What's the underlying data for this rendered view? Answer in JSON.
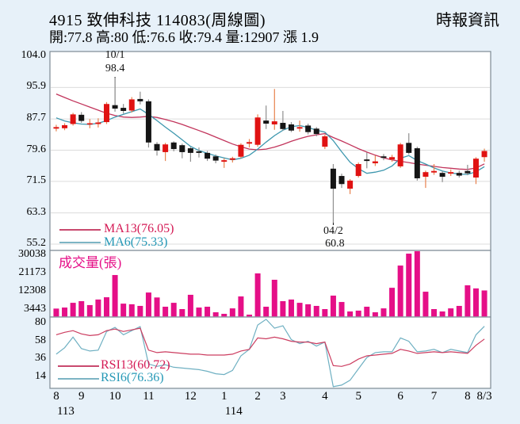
{
  "header": {
    "title": "4915  致伸科技 114083(周線圖)",
    "source": "時報資訊",
    "quote": "開:77.8 高:80 低:76.6 收:79.4 量:12907 漲 1.9"
  },
  "legends": {
    "ma13": "MA13(76.05)",
    "ma6": "MA6(75.33)",
    "volume_title": "成交量(張)",
    "rsi13": "RSI13(60.72)",
    "rsi6": "RSI6(76.36)"
  },
  "colors": {
    "background": "#e7f1f9",
    "plot_background": "#ffffff",
    "plot_border": "#7d8a94",
    "gridline": "#dcdcdc",
    "up_candle": "#e01212",
    "up_wick": "#e8824e",
    "down_candle": "#151515",
    "down_wick": "#8f8f8f",
    "ma13_line": "#c2355c",
    "ma6_line": "#3d97ae",
    "volume_bar": "#e50f87",
    "rsi13_line": "#cc3d60",
    "rsi6_line": "#6fb0c2",
    "annotation": "#111111"
  },
  "chart_data": {
    "type": "candlestick",
    "panes": [
      "price+ma",
      "volume",
      "rsi"
    ],
    "x_unit": "week",
    "price_ylim": [
      55.2,
      104.0
    ],
    "price_ticks": [
      104.0,
      95.9,
      87.7,
      79.6,
      71.5,
      63.3,
      55.2
    ],
    "volume_ticks": [
      30038,
      21173,
      12308,
      3443
    ],
    "rsi_ticks": [
      80,
      58,
      36,
      14
    ],
    "x_ticks": [
      {
        "label": "8",
        "i": 0
      },
      {
        "label": "9",
        "i": 3
      },
      {
        "label": "10",
        "i": 7
      },
      {
        "label": "11",
        "i": 11
      },
      {
        "label": "12",
        "i": 16
      },
      {
        "label": "1",
        "i": 20
      },
      {
        "label": "2",
        "i": 24
      },
      {
        "label": "3",
        "i": 27
      },
      {
        "label": "4",
        "i": 32
      },
      {
        "label": "5",
        "i": 36
      },
      {
        "label": "6",
        "i": 41
      },
      {
        "label": "7",
        "i": 45
      },
      {
        "label": "8",
        "i": 49
      },
      {
        "label": "8/3",
        "i": 51
      }
    ],
    "year_ticks": [
      {
        "label": "113",
        "i": 0
      },
      {
        "label": "114",
        "i": 20
      }
    ],
    "high_annotation": {
      "label": "10/1",
      "value_label": "98.4",
      "value": 98.4,
      "index": 7
    },
    "low_annotation": {
      "label": "04/2",
      "value_label": "60.8",
      "value": 60.8,
      "index": 33
    },
    "candles_ohlc": [
      [
        85.2,
        86.2,
        84.5,
        85.6
      ],
      [
        85.3,
        86.6,
        84.8,
        86.1
      ],
      [
        86.4,
        89.3,
        86.0,
        88.9
      ],
      [
        88.8,
        89.5,
        86.7,
        87.2
      ],
      [
        86.3,
        87.7,
        85.3,
        86.6
      ],
      [
        86.4,
        87.9,
        85.5,
        86.8
      ],
      [
        86.9,
        92.1,
        86.4,
        91.6
      ],
      [
        91.3,
        98.4,
        89.6,
        90.4
      ],
      [
        90.6,
        91.6,
        89.1,
        89.8
      ],
      [
        89.9,
        93.4,
        89.4,
        92.8
      ],
      [
        92.9,
        94.8,
        91.5,
        92.3
      ],
      [
        92.3,
        92.8,
        80.3,
        81.6
      ],
      [
        81.2,
        81.7,
        78.2,
        79.5
      ],
      [
        79.1,
        81.5,
        76.8,
        81.1
      ],
      [
        81.6,
        81.9,
        79.3,
        79.9
      ],
      [
        80.9,
        81.3,
        77.5,
        79.1
      ],
      [
        80.1,
        80.4,
        76.6,
        78.9
      ],
      [
        79.3,
        80.3,
        77.7,
        78.9
      ],
      [
        78.9,
        79.4,
        76.8,
        77.4
      ],
      [
        78.0,
        78.5,
        76.2,
        76.9
      ],
      [
        76.6,
        77.5,
        75.0,
        77.0
      ],
      [
        77.1,
        77.9,
        76.4,
        77.5
      ],
      [
        77.9,
        81.4,
        77.5,
        81.0
      ],
      [
        81.3,
        82.5,
        80.3,
        81.7
      ],
      [
        81.0,
        88.9,
        80.5,
        88.1
      ],
      [
        87.3,
        91.2,
        85.1,
        86.5
      ],
      [
        86.3,
        95.5,
        84.9,
        87.1
      ],
      [
        86.7,
        89.8,
        84.7,
        85.1
      ],
      [
        86.3,
        86.9,
        84.3,
        84.7
      ],
      [
        85.2,
        87.3,
        84.4,
        85.6
      ],
      [
        86.0,
        86.5,
        83.7,
        84.3
      ],
      [
        85.2,
        85.6,
        83.2,
        83.8
      ],
      [
        80.5,
        83.6,
        79.9,
        83.2
      ],
      [
        74.8,
        76.0,
        60.8,
        69.6
      ],
      [
        72.9,
        73.5,
        69.8,
        70.8
      ],
      [
        69.6,
        72.1,
        68.2,
        71.7
      ],
      [
        72.9,
        76.4,
        72.5,
        76.0
      ],
      [
        77.2,
        79.0,
        74.9,
        76.8
      ],
      [
        76.2,
        78.2,
        75.5,
        76.7
      ],
      [
        78.0,
        78.6,
        77.0,
        77.6
      ],
      [
        77.2,
        78.4,
        76.6,
        77.8
      ],
      [
        75.4,
        81.5,
        75.0,
        81.1
      ],
      [
        81.5,
        84.0,
        78.5,
        78.9
      ],
      [
        80.1,
        80.5,
        71.7,
        72.3
      ],
      [
        72.7,
        74.3,
        69.8,
        73.9
      ],
      [
        73.8,
        76.0,
        73.2,
        74.2
      ],
      [
        73.7,
        74.2,
        71.3,
        72.7
      ],
      [
        73.5,
        74.6,
        72.9,
        73.9
      ],
      [
        73.7,
        74.3,
        72.5,
        73.0
      ],
      [
        74.2,
        75.8,
        73.1,
        73.6
      ],
      [
        72.5,
        77.8,
        70.8,
        77.4
      ],
      [
        77.8,
        80.0,
        76.6,
        79.4
      ]
    ],
    "ma13": [
      94.2,
      93.3,
      92.4,
      91.6,
      90.8,
      90.0,
      89.2,
      88.6,
      88.2,
      88.1,
      88.2,
      88.4,
      88.1,
      87.6,
      87.0,
      86.3,
      85.5,
      84.7,
      83.9,
      83.0,
      82.1,
      81.2,
      80.5,
      79.9,
      79.7,
      79.9,
      80.4,
      81.1,
      81.9,
      82.6,
      83.2,
      83.6,
      83.9,
      82.9,
      82.0,
      81.0,
      80.0,
      79.1,
      78.3,
      77.6,
      77.1,
      76.7,
      76.4,
      76.0,
      75.7,
      75.4,
      75.1,
      74.9,
      74.7,
      74.6,
      75.0,
      76.05
    ],
    "ma6": [
      88.0,
      87.2,
      86.7,
      86.4,
      86.3,
      86.6,
      87.3,
      88.2,
      88.9,
      89.6,
      90.3,
      88.9,
      87.3,
      85.6,
      84.0,
      82.3,
      80.6,
      79.5,
      78.8,
      78.1,
      77.6,
      77.1,
      77.5,
      78.3,
      79.9,
      81.7,
      83.4,
      84.8,
      85.7,
      86.0,
      85.5,
      84.8,
      84.3,
      82.1,
      79.2,
      76.5,
      74.8,
      73.6,
      73.9,
      74.4,
      75.5,
      77.5,
      78.2,
      76.9,
      76.0,
      75.0,
      74.2,
      73.7,
      73.4,
      73.3,
      74.0,
      75.33
    ],
    "volume": [
      4100,
      4600,
      6900,
      7700,
      5800,
      8500,
      9600,
      20400,
      6500,
      6200,
      5400,
      11900,
      9500,
      5000,
      6900,
      3850,
      10800,
      4600,
      5000,
      2300,
      1550,
      4200,
      10000,
      1150,
      21200,
      5000,
      18100,
      7700,
      8500,
      6900,
      6200,
      5400,
      3850,
      10400,
      7300,
      2700,
      3100,
      5000,
      2300,
      4200,
      14200,
      25000,
      30800,
      32700,
      12300,
      3850,
      2700,
      4200,
      5400,
      15400,
      13900,
      12907
    ],
    "rsi13": [
      66,
      69,
      71,
      67,
      65,
      66,
      71,
      73,
      70,
      72,
      74,
      47,
      44,
      45,
      44,
      43,
      42,
      42,
      41,
      41,
      41,
      42,
      46,
      48,
      62,
      61,
      63,
      61,
      58,
      57,
      57,
      55,
      57,
      28,
      27,
      30,
      36,
      40,
      41,
      42,
      43,
      48,
      46,
      43,
      44,
      45,
      44,
      45,
      44,
      43,
      53,
      60.72
    ],
    "rsi6": [
      42,
      50,
      63,
      49,
      46,
      47,
      70,
      75,
      66,
      71,
      76,
      30,
      27,
      29,
      26,
      25,
      24,
      23,
      21,
      18,
      17,
      22,
      40,
      48,
      78,
      85,
      74,
      77,
      60,
      55,
      58,
      52,
      57,
      2,
      4,
      10,
      24,
      38,
      44,
      45,
      45,
      62,
      58,
      45,
      46,
      48,
      44,
      48,
      46,
      44,
      66,
      76.36
    ]
  }
}
